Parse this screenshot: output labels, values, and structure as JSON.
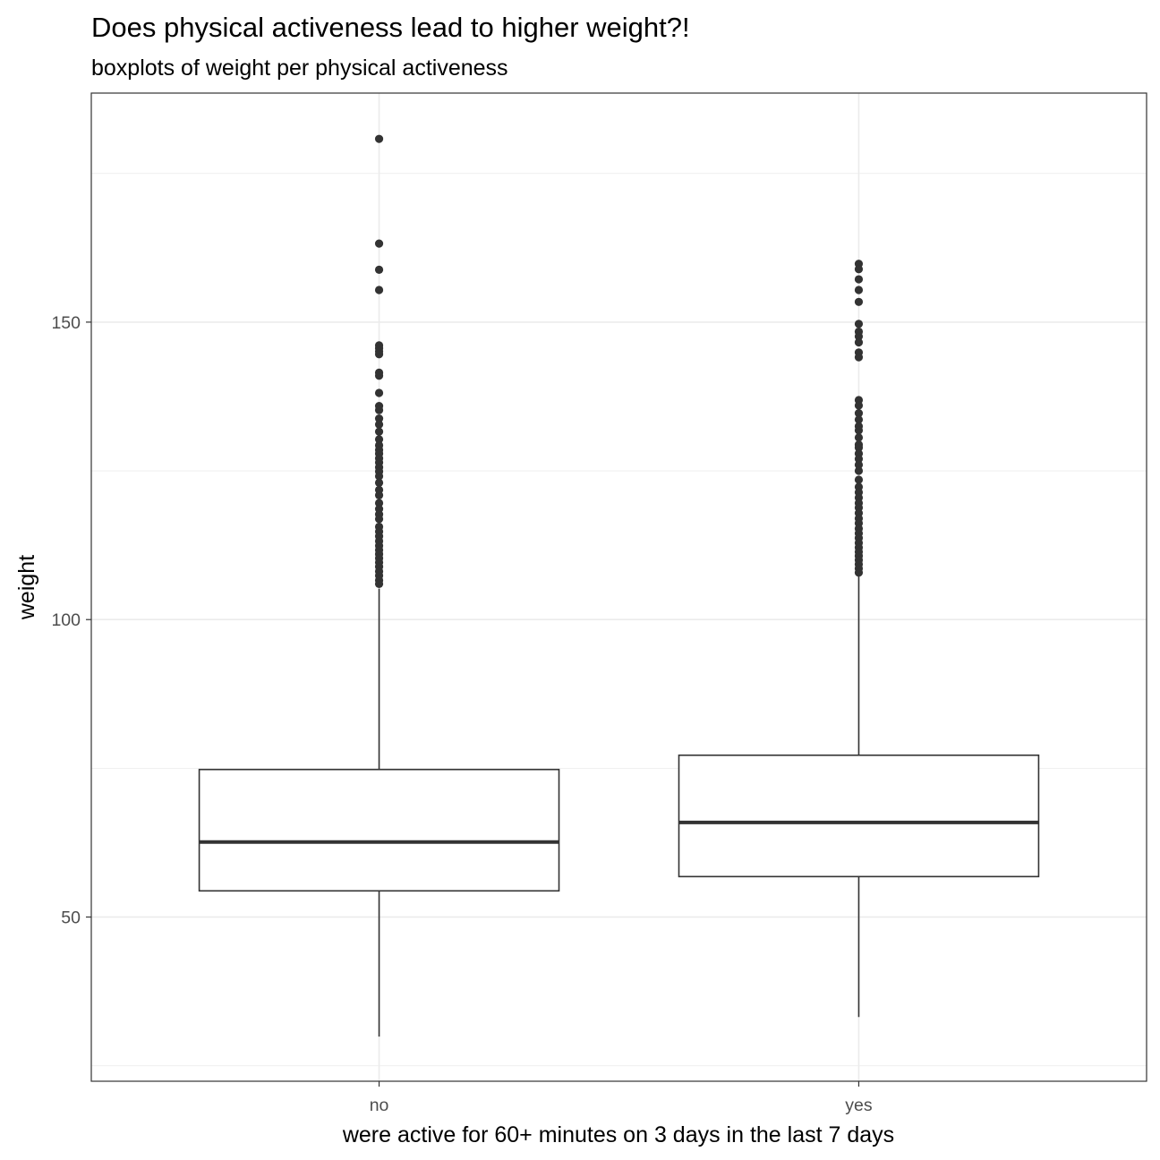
{
  "chart_data": {
    "type": "boxplot",
    "title": "Does physical activeness lead to higher weight?!",
    "subtitle": "boxplots of weight per physical activeness",
    "xlabel": "were active for 60+ minutes on 3 days in the last 7 days",
    "ylabel": "weight",
    "categories": [
      "no",
      "yes"
    ],
    "ylim": [
      22.4,
      188.5
    ],
    "yticks": [
      50,
      100,
      150
    ],
    "grid": true,
    "legend": "none",
    "colors": {
      "box_fill": "#ffffff",
      "box_stroke": "#333333",
      "grid": "#ebebeb",
      "panel_border": "#333333"
    },
    "boxes": [
      {
        "category": "no",
        "lower_whisker": 29.9,
        "q1": 54.4,
        "median": 62.6,
        "q3": 74.8,
        "upper_whisker": 105.2,
        "outliers": [
          180.8,
          163.2,
          158.8,
          155.4,
          146.1,
          145.6,
          145.1,
          144.6,
          141.5,
          141.0,
          138.1,
          135.9,
          135.2,
          133.8,
          132.8,
          131.6,
          130.3,
          129.3,
          128.5,
          127.9,
          127.1,
          126.4,
          125.6,
          124.9,
          124.1,
          123.0,
          121.8,
          120.9,
          119.6,
          118.6,
          117.7,
          116.9,
          115.6,
          114.8,
          114.0,
          113.2,
          112.4,
          111.7,
          111.0,
          110.3,
          109.6,
          108.9,
          108.1,
          107.4,
          106.6,
          106.0
        ]
      },
      {
        "category": "yes",
        "lower_whisker": 33.2,
        "q1": 56.8,
        "median": 65.9,
        "q3": 77.2,
        "upper_whisker": 107.5,
        "outliers": [
          159.8,
          158.9,
          157.2,
          155.4,
          153.4,
          149.7,
          148.4,
          147.6,
          146.6,
          144.9,
          144.1,
          136.9,
          136.0,
          134.7,
          133.6,
          132.5,
          131.8,
          130.6,
          129.4,
          128.9,
          127.9,
          127.0,
          126.0,
          125.0,
          123.5,
          122.3,
          121.4,
          120.5,
          119.6,
          118.8,
          117.9,
          117.0,
          116.2,
          115.3,
          114.5,
          113.7,
          112.9,
          112.1,
          111.4,
          110.7,
          110.0,
          109.3,
          108.6,
          107.9
        ]
      }
    ]
  }
}
